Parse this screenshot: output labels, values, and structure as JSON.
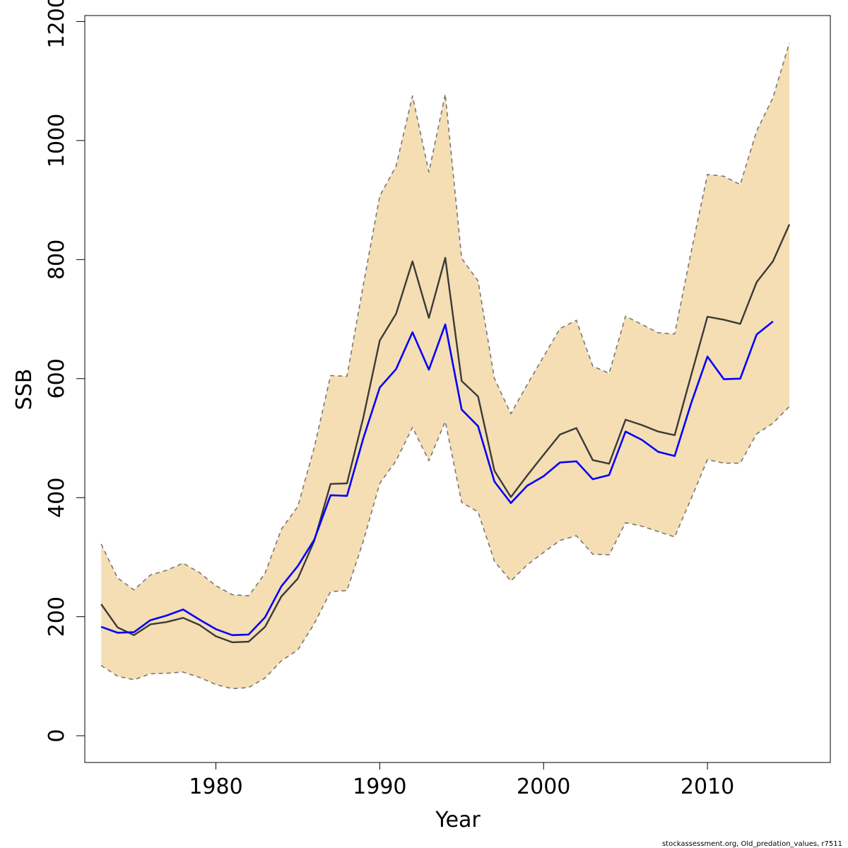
{
  "chart_data": {
    "type": "line",
    "xlabel": "Year",
    "ylabel": "SSB",
    "xlim": [
      1972,
      2017.5
    ],
    "ylim": [
      -45,
      1210
    ],
    "x_ticks": [
      1980,
      1990,
      2000,
      2010
    ],
    "y_ticks": [
      0,
      200,
      400,
      600,
      800,
      1000,
      1200
    ],
    "x_tick_labels": [
      "1980",
      "1990",
      "2000",
      "2010"
    ],
    "y_tick_labels": [
      "0",
      "200",
      "400",
      "600",
      "800",
      "1000",
      "1200"
    ],
    "years": [
      1973,
      1974,
      1975,
      1976,
      1977,
      1978,
      1979,
      1980,
      1981,
      1982,
      1983,
      1984,
      1985,
      1986,
      1987,
      1988,
      1989,
      1990,
      1991,
      1992,
      1993,
      1994,
      1995,
      1996,
      1997,
      1998,
      1999,
      2000,
      2001,
      2002,
      2003,
      2004,
      2005,
      2006,
      2007,
      2008,
      2009,
      2010,
      2011,
      2012,
      2013,
      2014,
      2015
    ],
    "series": [
      {
        "role": "upper-bound",
        "style": "dashed",
        "color": "#777777",
        "values": [
          322,
          265,
          245,
          270,
          278,
          290,
          274,
          252,
          237,
          235,
          273,
          347,
          385,
          484,
          605,
          604,
          758,
          907,
          957,
          1075,
          947,
          1078,
          802,
          764,
          600,
          541,
          590,
          637,
          684,
          698,
          621,
          609,
          705,
          691,
          677,
          675,
          812,
          943,
          940,
          926,
          1016,
          1072,
          1164
        ]
      },
      {
        "role": "lower-bound",
        "style": "dashed",
        "color": "#777777",
        "values": [
          118,
          100,
          94,
          104,
          105,
          107,
          98,
          86,
          79,
          81,
          97,
          126,
          144,
          188,
          242,
          244,
          327,
          424,
          462,
          518,
          462,
          528,
          392,
          376,
          293,
          260,
          287,
          308,
          328,
          336,
          305,
          304,
          358,
          352,
          343,
          334,
          398,
          464,
          458,
          458,
          507,
          525,
          553
        ]
      },
      {
        "role": "estimate",
        "style": "solid",
        "color": "#3a3a3a",
        "values": [
          221,
          182,
          169,
          187,
          191,
          198,
          186,
          167,
          157,
          158,
          183,
          234,
          264,
          327,
          423,
          424,
          535,
          664,
          709,
          797,
          702,
          803,
          596,
          570,
          445,
          401,
          437,
          472,
          506,
          517,
          463,
          457,
          531,
          522,
          511,
          505,
          605,
          704,
          699,
          692,
          762,
          797,
          859
        ]
      },
      {
        "role": "old-predation-values",
        "style": "solid",
        "color": "#0000ff",
        "values": [
          183,
          173,
          174,
          194,
          202,
          212,
          195,
          179,
          169,
          170,
          199,
          251,
          285,
          329,
          404,
          403,
          500,
          585,
          616,
          678,
          615,
          691,
          548,
          520,
          427,
          391,
          420,
          436,
          459,
          461,
          431,
          438,
          511,
          497,
          477,
          470,
          558,
          637,
          599,
          600,
          674,
          696,
          null
        ]
      }
    ]
  },
  "footer": {
    "text": "stockassessment.org, Old_predation_values, r7511"
  }
}
